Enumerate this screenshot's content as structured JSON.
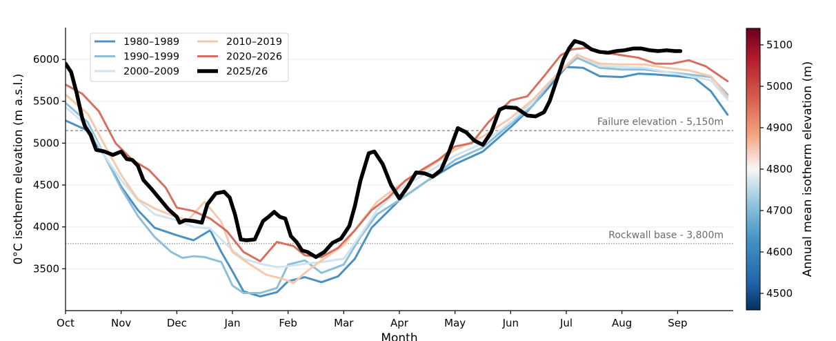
{
  "chart_data": {
    "type": "line",
    "xlabel": "Month",
    "ylabel": "0°C isotherm elevation (m a.s.l.)",
    "ylim": [
      3000,
      6380
    ],
    "xlim": [
      0,
      12
    ],
    "x_ticks": [
      "Oct",
      "Nov",
      "Dec",
      "Jan",
      "Feb",
      "Mar",
      "Apr",
      "May",
      "Jun",
      "Jul",
      "Aug",
      "Sep"
    ],
    "y_ticks": [
      3500,
      4000,
      4500,
      5000,
      5500,
      6000
    ],
    "grid": "horizontal",
    "legend_position": "top-left",
    "reference_lines": [
      {
        "value": 5150,
        "label": "Failure elevation - 5,150m",
        "style": "dashed"
      },
      {
        "value": 3800,
        "label": "Rockwall base - 3,800m",
        "style": "dotted"
      }
    ],
    "colorbar": {
      "label": "Annual mean isotherm elevation (m)",
      "min": 4460,
      "max": 5140,
      "ticks": [
        4500,
        4600,
        4700,
        4800,
        4900,
        5000,
        5100
      ],
      "colormap": "RdBu_r"
    },
    "series": [
      {
        "name": "1980–1989",
        "color": "#4a90c2",
        "width": 3,
        "x": [
          0,
          0.4,
          0.7,
          1,
          1.3,
          1.6,
          2,
          2.3,
          2.6,
          2.8,
          3,
          3.2,
          3.5,
          3.8,
          4,
          4.3,
          4.6,
          4.9,
          5.2,
          5.5,
          6,
          6.5,
          7,
          7.5,
          8,
          8.3,
          8.6,
          9,
          9.3,
          9.6,
          10,
          10.3,
          10.6,
          11,
          11.3,
          11.6,
          11.9
        ],
        "y": [
          5270,
          5150,
          4850,
          4480,
          4200,
          3990,
          3900,
          3840,
          3960,
          3700,
          3470,
          3230,
          3170,
          3220,
          3350,
          3400,
          3340,
          3410,
          3620,
          3990,
          4320,
          4550,
          4750,
          4900,
          5190,
          5380,
          5600,
          5910,
          5900,
          5800,
          5790,
          5830,
          5820,
          5800,
          5780,
          5620,
          5340
        ]
      },
      {
        "name": "1990–1999",
        "color": "#8dbfd9",
        "width": 3,
        "x": [
          0,
          0.4,
          0.7,
          1,
          1.3,
          1.6,
          1.9,
          2.1,
          2.3,
          2.5,
          2.8,
          3,
          3.2,
          3.5,
          3.8,
          4,
          4.3,
          4.6,
          5,
          5.3,
          5.6,
          6,
          6.5,
          7,
          7.5,
          8,
          8.4,
          8.8,
          9.2,
          9.6,
          10,
          10.4,
          10.8,
          11.2,
          11.6,
          11.9
        ],
        "y": [
          5480,
          5250,
          4850,
          4460,
          4130,
          3880,
          3700,
          3630,
          3650,
          3640,
          3580,
          3300,
          3210,
          3210,
          3270,
          3550,
          3600,
          3450,
          3550,
          3880,
          4150,
          4320,
          4550,
          4800,
          4950,
          5230,
          5450,
          5800,
          6020,
          5900,
          5880,
          5880,
          5850,
          5820,
          5790,
          5580
        ]
      },
      {
        "name": "2000–2009",
        "color": "#cfe3f0",
        "width": 3,
        "x": [
          0,
          0.4,
          0.7,
          1,
          1.3,
          1.6,
          2,
          2.3,
          2.6,
          3,
          3.2,
          3.5,
          3.8,
          4,
          4.3,
          4.6,
          5,
          5.3,
          5.6,
          6,
          6.5,
          7,
          7.5,
          8,
          8.4,
          8.8,
          9.2,
          9.6,
          10,
          10.4,
          10.8,
          11.2,
          11.6,
          11.9
        ],
        "y": [
          5430,
          5200,
          4850,
          4560,
          4320,
          4150,
          4080,
          4000,
          3980,
          3720,
          3620,
          3560,
          3520,
          3530,
          3560,
          3580,
          3620,
          3900,
          4200,
          4450,
          4650,
          4850,
          5000,
          5250,
          5500,
          5800,
          6060,
          5920,
          5910,
          5900,
          5850,
          5800,
          5750,
          5520
        ]
      },
      {
        "name": "2010–2019",
        "color": "#f6c9ac",
        "width": 3,
        "x": [
          0,
          0.4,
          0.7,
          1,
          1.3,
          1.6,
          1.9,
          2.2,
          2.5,
          2.8,
          3,
          3.3,
          3.6,
          3.9,
          4.1,
          4.3,
          4.6,
          5,
          5.3,
          5.6,
          6,
          6.5,
          7,
          7.5,
          8,
          8.4,
          8.8,
          9.2,
          9.6,
          10,
          10.4,
          10.8,
          11.2,
          11.6,
          11.9
        ],
        "y": [
          5580,
          5350,
          4980,
          4620,
          4330,
          4220,
          4140,
          4080,
          4300,
          4060,
          3700,
          3560,
          3430,
          3380,
          3330,
          3450,
          3600,
          3780,
          4050,
          4300,
          4500,
          4700,
          4920,
          5080,
          5300,
          5520,
          5800,
          6050,
          5950,
          5940,
          5940,
          5900,
          5870,
          5800,
          5550
        ]
      },
      {
        "name": "2020–2026",
        "color": "#d6705e",
        "width": 3,
        "x": [
          0,
          0.3,
          0.6,
          0.9,
          1.2,
          1.5,
          1.8,
          2,
          2.3,
          2.6,
          2.9,
          3.2,
          3.5,
          3.8,
          4.1,
          4.3,
          4.6,
          4.9,
          5.2,
          5.5,
          5.8,
          6.1,
          6.4,
          6.7,
          7,
          7.3,
          7.6,
          8,
          8.3,
          8.6,
          8.9,
          9.1,
          9.4,
          9.7,
          10,
          10.3,
          10.6,
          10.9,
          11.2,
          11.5,
          11.9
        ],
        "y": [
          5700,
          5590,
          5380,
          5000,
          4800,
          4680,
          4470,
          4230,
          4190,
          4100,
          3950,
          3700,
          3590,
          3820,
          3770,
          3660,
          3640,
          3750,
          3960,
          4200,
          4350,
          4550,
          4680,
          4800,
          4960,
          5000,
          5250,
          5510,
          5560,
          5800,
          6050,
          6120,
          6140,
          6080,
          6050,
          6020,
          5950,
          5950,
          5990,
          5920,
          5740
        ]
      },
      {
        "name": "2025/26",
        "color": "#000000",
        "width": 5.5,
        "x": [
          0,
          0.1,
          0.2,
          0.3,
          0.35,
          0.45,
          0.55,
          0.7,
          0.85,
          1,
          1.1,
          1.2,
          1.3,
          1.4,
          1.55,
          1.7,
          1.85,
          2,
          2.05,
          2.15,
          2.3,
          2.45,
          2.55,
          2.7,
          2.85,
          2.95,
          3.05,
          3.15,
          3.25,
          3.4,
          3.55,
          3.65,
          3.75,
          3.85,
          3.95,
          4.05,
          4.15,
          4.25,
          4.35,
          4.5,
          4.65,
          4.8,
          4.95,
          5.1,
          5.2,
          5.3,
          5.45,
          5.55,
          5.7,
          5.85,
          6,
          6.15,
          6.3,
          6.45,
          6.6,
          6.75,
          6.9,
          7.05,
          7.2,
          7.35,
          7.5,
          7.65,
          7.8,
          7.9,
          8.1,
          8.3,
          8.45,
          8.6,
          8.7,
          8.8,
          8.95,
          9.05,
          9.15,
          9.3,
          9.45,
          9.6,
          9.75,
          9.9,
          10.05,
          10.2,
          10.35,
          10.5,
          10.65,
          10.8,
          10.95,
          11.05
        ],
        "y": [
          5950,
          5850,
          5600,
          5300,
          5200,
          5100,
          4920,
          4900,
          4860,
          4900,
          4810,
          4800,
          4730,
          4560,
          4450,
          4330,
          4210,
          4120,
          4050,
          4080,
          4070,
          4050,
          4270,
          4400,
          4420,
          4350,
          4140,
          3850,
          3840,
          3850,
          4070,
          4120,
          4180,
          4120,
          4100,
          3890,
          3820,
          3720,
          3700,
          3640,
          3700,
          3810,
          3860,
          4010,
          4250,
          4550,
          4880,
          4900,
          4750,
          4500,
          4340,
          4480,
          4650,
          4640,
          4600,
          4680,
          4910,
          5180,
          5130,
          5030,
          4980,
          5130,
          5400,
          5430,
          5420,
          5330,
          5320,
          5370,
          5500,
          5700,
          6000,
          6130,
          6220,
          6190,
          6120,
          6090,
          6080,
          6100,
          6110,
          6130,
          6130,
          6110,
          6100,
          6110,
          6100,
          6100
        ]
      }
    ]
  }
}
